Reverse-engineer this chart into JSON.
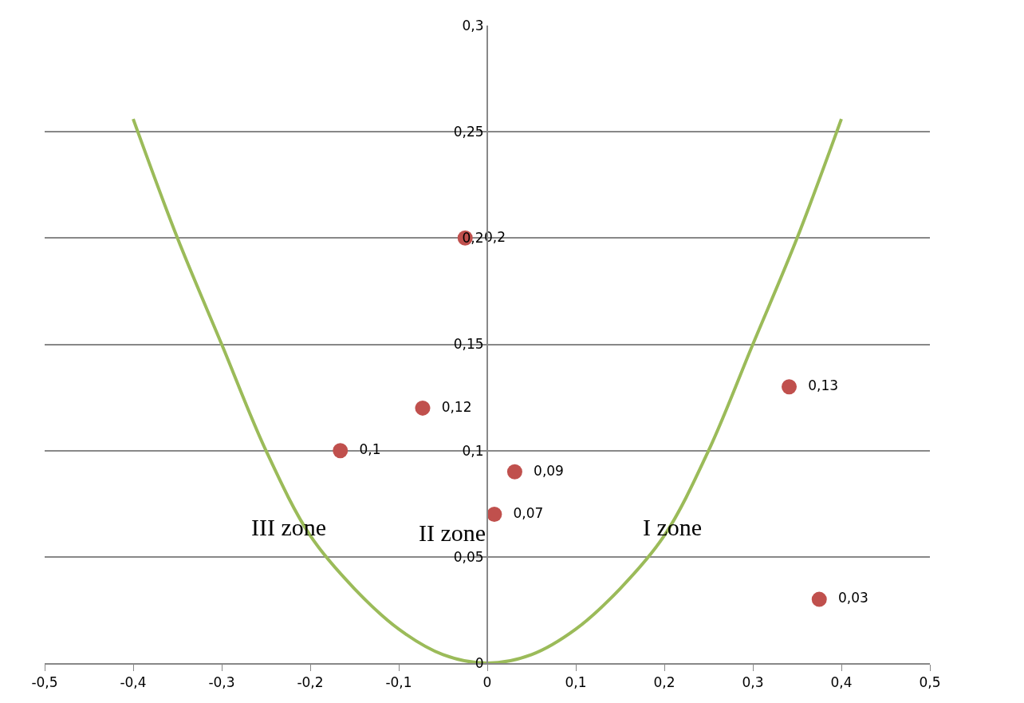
{
  "chart_data": {
    "type": "scatter",
    "series": [
      {
        "color": "#c0504d",
        "marker": "circle",
        "x": [
          -0.025,
          -0.073,
          -0.166,
          0.031,
          0.008,
          0.341,
          0.375
        ],
        "values": [
          0.2,
          0.12,
          0.1,
          0.09,
          0.07,
          0.13,
          0.03
        ],
        "value_labels": [
          "0,2",
          "0,12",
          "0,1",
          "0,09",
          "0,07",
          "0,13",
          "0,03"
        ]
      },
      {
        "type": "line",
        "color": "#9bbb59",
        "marker": "none",
        "line_style": "solid",
        "x": [
          -0.4,
          -0.35,
          -0.3,
          -0.25,
          -0.2,
          -0.15,
          -0.1,
          -0.05,
          0,
          0.05,
          0.1,
          0.15,
          0.2,
          0.25,
          0.3,
          0.35,
          0.4
        ],
        "values": [
          0.256,
          0.2,
          0.15,
          0.1,
          0.06,
          0.035,
          0.016,
          0.004,
          0,
          0.004,
          0.016,
          0.035,
          0.06,
          0.1,
          0.15,
          0.2,
          0.256
        ]
      }
    ],
    "annotations": [
      "III zone",
      "II zone",
      "I zone"
    ],
    "xlim": [
      -0.5,
      0.5
    ],
    "xticks": [
      {
        "value": -0.5,
        "label": "-0,5"
      },
      {
        "value": -0.4,
        "label": "-0,4"
      },
      {
        "value": -0.3,
        "label": "-0,3"
      },
      {
        "value": -0.2,
        "label": "-0,2"
      },
      {
        "value": -0.1,
        "label": "-0,1"
      },
      0,
      {
        "value": 0.1,
        "label": "0,1"
      },
      {
        "value": 0.2,
        "label": "0,2"
      },
      {
        "value": 0.3,
        "label": "0,3"
      },
      {
        "value": 0.4,
        "label": "0,4"
      },
      {
        "value": 0.5,
        "label": "0,5"
      }
    ],
    "ylim": [
      0,
      0.3
    ],
    "yticks": [
      0,
      {
        "value": 0.05,
        "label": "0,05"
      },
      {
        "value": 0.1,
        "label": "0,1"
      },
      {
        "value": 0.15,
        "label": "0,15"
      },
      {
        "value": 0.2,
        "label": "0,2"
      },
      {
        "value": 0.25,
        "label": "0,25"
      },
      {
        "value": 0.3,
        "label": "0,3"
      }
    ],
    "grid": "y"
  }
}
